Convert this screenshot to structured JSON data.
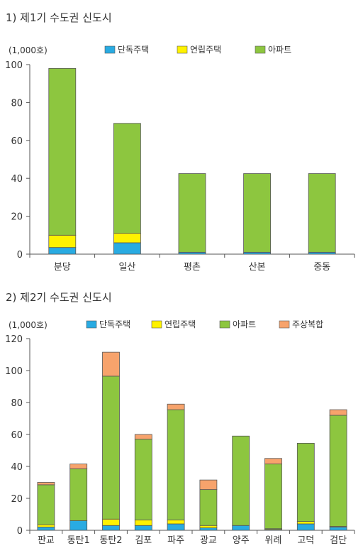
{
  "colors": {
    "detached": "#29abe2",
    "row_house": "#fff200",
    "apartment": "#8dc63f",
    "mixed_use": "#f7a36c",
    "bar_border": "#555555",
    "axis": "#555555"
  },
  "chart_data": [
    {
      "type": "bar",
      "stacked": true,
      "title": "1) 제1기 수도권 신도시",
      "unit_label": "(1,000호)",
      "categories": [
        "분당",
        "일산",
        "평촌",
        "산본",
        "중동"
      ],
      "series": [
        {
          "name": "단독주택",
          "color_key": "detached",
          "values": [
            3.5,
            6,
            1,
            1,
            1
          ]
        },
        {
          "name": "연립주택",
          "color_key": "row_house",
          "values": [
            6.5,
            5,
            0,
            0,
            0
          ]
        },
        {
          "name": "아파트",
          "color_key": "apartment",
          "values": [
            88,
            58,
            41.5,
            41.5,
            41.5
          ]
        }
      ],
      "ylim": [
        0,
        100
      ],
      "yticks": [
        0,
        20,
        40,
        60,
        80,
        100
      ],
      "legend_position": "top"
    },
    {
      "type": "bar",
      "stacked": true,
      "title": "2) 제2기 수도권 신도시",
      "unit_label": "(1,000호)",
      "categories": [
        "판교",
        "동탄1",
        "동탄2",
        "김포",
        "파주",
        "광교",
        "양주",
        "위례",
        "고덕",
        "검단"
      ],
      "series": [
        {
          "name": "단독주택",
          "color_key": "detached",
          "values": [
            2,
            6,
            3,
            3,
            4,
            1.5,
            3,
            0.5,
            4,
            2
          ]
        },
        {
          "name": "연립주택",
          "color_key": "row_house",
          "values": [
            1.5,
            0,
            4,
            3.5,
            2.5,
            1.5,
            0,
            0.5,
            1.5,
            0.5
          ]
        },
        {
          "name": "아파트",
          "color_key": "apartment",
          "values": [
            25,
            32.5,
            89.5,
            50.5,
            69,
            22.5,
            56,
            40.5,
            49,
            69.5
          ]
        },
        {
          "name": "주상복합",
          "color_key": "mixed_use",
          "values": [
            1.5,
            3,
            15,
            3,
            3.5,
            6,
            0,
            3.5,
            0,
            3.5
          ]
        }
      ],
      "ylim": [
        0,
        120
      ],
      "yticks": [
        0,
        20,
        40,
        60,
        80,
        100,
        120
      ],
      "legend_position": "top"
    }
  ]
}
